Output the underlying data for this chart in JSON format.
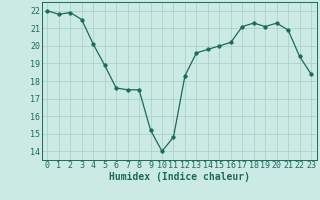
{
  "x": [
    0,
    1,
    2,
    3,
    4,
    5,
    6,
    7,
    8,
    9,
    10,
    11,
    12,
    13,
    14,
    15,
    16,
    17,
    18,
    19,
    20,
    21,
    22,
    23
  ],
  "y": [
    22.0,
    21.8,
    21.9,
    21.5,
    20.1,
    18.9,
    17.6,
    17.5,
    17.5,
    15.2,
    14.0,
    14.8,
    18.3,
    19.6,
    19.8,
    20.0,
    20.2,
    21.1,
    21.3,
    21.1,
    21.3,
    20.9,
    19.4,
    18.4
  ],
  "xlabel": "Humidex (Indice chaleur)",
  "ylim": [
    13.5,
    22.5
  ],
  "xlim": [
    -0.5,
    23.5
  ],
  "yticks": [
    14,
    15,
    16,
    17,
    18,
    19,
    20,
    21,
    22
  ],
  "xticks": [
    0,
    1,
    2,
    3,
    4,
    5,
    6,
    7,
    8,
    9,
    10,
    11,
    12,
    13,
    14,
    15,
    16,
    17,
    18,
    19,
    20,
    21,
    22,
    23
  ],
  "line_color": "#1a6b5a",
  "marker_size": 2.5,
  "bg_color": "#cceae4",
  "grid_color": "#aad4cc",
  "tick_color": "#1a6b5a",
  "label_color": "#1a6b5a",
  "font_size_label": 7,
  "font_size_tick": 6
}
